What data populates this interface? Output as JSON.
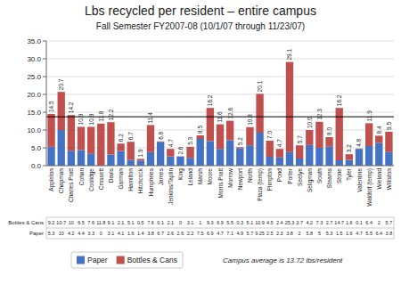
{
  "chart_data": {
    "type": "bar",
    "stacked": true,
    "title": "Lbs recycled per resident – entire campus",
    "subtitle": "Fall Semester FY2007-08 (10/1/07 through 11/23/07)",
    "categories": [
      "Appleton",
      "Chapman",
      "Charles Pratt",
      "Cohan",
      "Coolidge",
      "Crossett",
      "Davis",
      "Garman",
      "Hamilton",
      "Hitchcock",
      "Humphries",
      "James",
      "Jenkins/Taplin",
      "King",
      "Leland",
      "Marsh",
      "Moore",
      "Morris Pratt",
      "Morrow",
      "Newport",
      "North",
      "Plaza (temp)",
      "Plimpton",
      "Pond",
      "Porter",
      "Seelye",
      "Seligman",
      "South",
      "Stearns",
      "Stone",
      "Tyler",
      "Valentine",
      "Waldorf (temp)",
      "Wieland",
      "Williston"
    ],
    "series": [
      {
        "name": "Paper",
        "color": "#4472c4",
        "values": [
          5.3,
          10.0,
          4.2,
          4.4,
          3.3,
          0.0,
          3.1,
          4.1,
          1.6,
          1.4,
          3.8,
          6.7,
          2.6,
          2.6,
          2.2,
          7.5,
          6.9,
          4.7,
          7.1,
          4.9,
          5.7,
          9.25,
          2.5,
          2.3,
          3.8,
          2.0,
          5.8,
          5.0,
          5.3,
          1.5,
          1.6,
          4.7,
          5.5,
          6.4,
          3.8
        ],
        "value_labels": [
          "5.3",
          "10",
          "4.2",
          "4.4",
          "3.3",
          "0",
          "3.1",
          "4.1",
          "1.6",
          "1.4",
          "3.8",
          "6.7",
          "2.6",
          "2.6",
          "2.2",
          "7.5",
          "6.9",
          "4.7",
          "7.1",
          "4.9",
          "5.7",
          "9.25",
          "2.5",
          "2.3",
          "3.8",
          "2",
          "5.8",
          "5",
          "5.3",
          "1.5",
          "1.6",
          "4.7",
          "5.5",
          "6.4",
          "3.8"
        ]
      },
      {
        "name": "Bottles & Cans",
        "color": "#c0504d",
        "values": [
          9.2,
          10.7,
          10.0,
          6.5,
          7.6,
          11.8,
          9.1,
          2.1,
          5.1,
          0.5,
          7.6,
          0.1,
          2.1,
          0.0,
          3.1,
          1.0,
          9.3,
          6.9,
          5.5,
          0.3,
          5.1,
          10.9,
          4.5,
          2.4,
          25.3,
          3.7,
          4.2,
          7.3,
          2.7,
          14.7,
          1.6,
          0.1,
          6.4,
          2.0,
          5.7
        ],
        "value_labels": [
          "9.2",
          "10.7",
          "10",
          "6.5",
          "7.6",
          "11.8",
          "9.1",
          "2.1",
          "5.1",
          "0.5",
          "7.6",
          "0.1",
          "2.1",
          "0",
          "3.1",
          "1",
          "9.3",
          "6.9",
          "5.5",
          "0.3",
          "5.1",
          "10.9",
          "4.5",
          "2.4",
          "25.3",
          "3.7",
          "4.2",
          "7.3",
          "2.7",
          "14.7",
          "1.6",
          "0.1",
          "6.4",
          "2",
          "5.7"
        ]
      }
    ],
    "totals": {
      "values": [
        14.5,
        20.7,
        14.2,
        10.9,
        10.9,
        11.8,
        12.2,
        6.2,
        6.7,
        1.9,
        11.4,
        6.8,
        4.7,
        2.6,
        5.3,
        8.5,
        16.2,
        11.6,
        12.6,
        5.2,
        10.8,
        20.15,
        7.0,
        4.7,
        29.1,
        5.7,
        10.0,
        12.3,
        8.0,
        16.2,
        3.2,
        4.8,
        11.9,
        8.4,
        9.5
      ],
      "value_labels": [
        "14.5",
        "20.7",
        "14.2",
        "10.9",
        "10.9",
        "11.8",
        "12.2",
        "6.2",
        "6.7",
        "1.9",
        "11.4",
        "6.8",
        "4.7",
        "2.6",
        "5.3",
        "8.5",
        "16.2",
        "11.6",
        "12.6",
        "5.2",
        "10.8",
        "20.1",
        "7.0",
        "4.7",
        "29.1",
        "5.7",
        "10.0",
        "12.3",
        "8.0",
        "16.2",
        "3.2",
        "4.8",
        "11.9",
        "8.4",
        "9.5"
      ]
    },
    "reference_line": {
      "value": 13.72,
      "label": "Campus average is 13.72 lbs/resident",
      "color": "#000000"
    },
    "ylim": [
      0,
      35
    ],
    "yticks": [
      {
        "value": 0,
        "label": "0.0"
      },
      {
        "value": 5,
        "label": "5.0"
      },
      {
        "value": 10,
        "label": "10.0"
      },
      {
        "value": 15,
        "label": "15.0"
      },
      {
        "value": 20,
        "label": "20.0"
      },
      {
        "value": 25,
        "label": "25.0"
      },
      {
        "value": 30,
        "label": "30.0"
      },
      {
        "value": 35,
        "label": "35.0"
      }
    ],
    "grid": true,
    "legend": "bottom"
  }
}
